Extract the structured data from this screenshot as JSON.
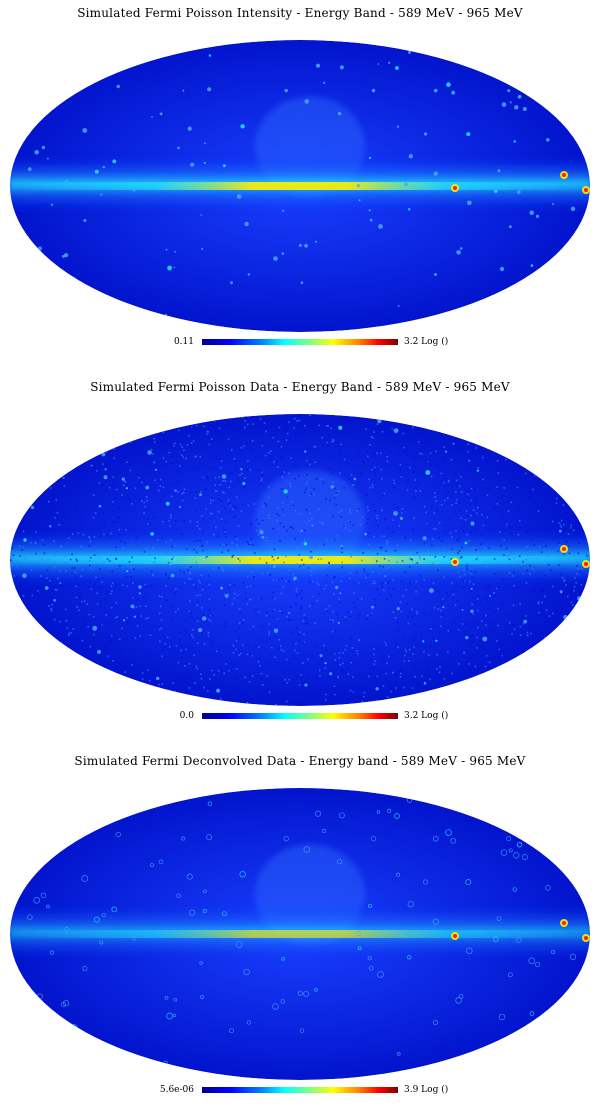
{
  "panels": [
    {
      "title": "Simulated Fermi Poisson Intensity -  Energy Band - 589 MeV - 965 MeV",
      "colorbar": {
        "min_label": "0.11",
        "max_label": "3.2 Log ()"
      },
      "style": "smooth"
    },
    {
      "title": "Simulated Fermi Poisson Data -  Energy Band - 589 MeV - 965 MeV",
      "colorbar": {
        "min_label": "0.0",
        "max_label": "3.2 Log ()"
      },
      "style": "noisy"
    },
    {
      "title": "Simulated Fermi Deconvolved Data - Energy band - 589 MeV - 965 MeV",
      "colorbar": {
        "min_label": "5.6e-06",
        "max_label": "3.9 Log ()"
      },
      "style": "deconvolved"
    }
  ],
  "colors": {
    "background_blue": "#0a2cff",
    "deep_blue": "#0010c8",
    "plane_cyan": "#22e8ff",
    "plane_yellow": "#fff000",
    "hot_red": "#ff2000"
  }
}
